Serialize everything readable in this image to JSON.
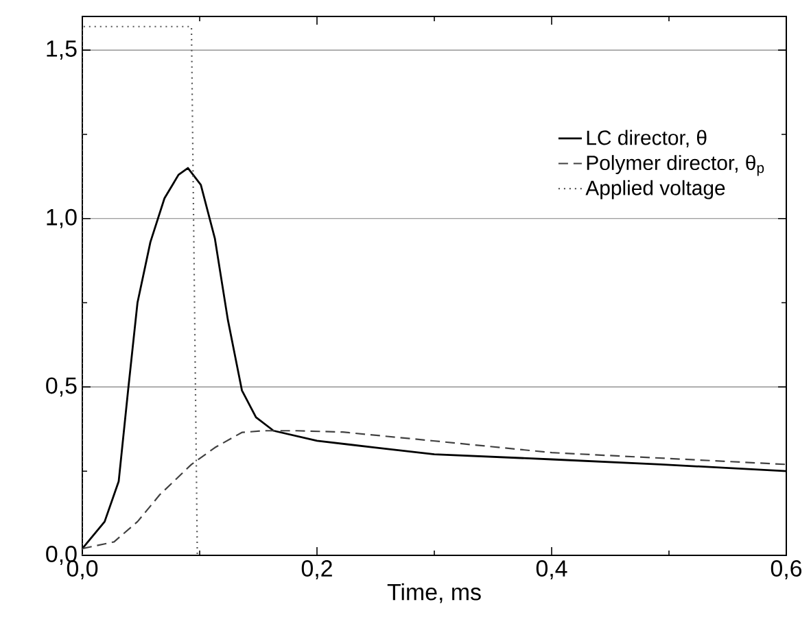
{
  "chart_data": {
    "type": "line",
    "xlabel": "Time, ms",
    "xlim": [
      0,
      0.6
    ],
    "ylim": [
      0,
      1.6
    ],
    "xticks": [
      {
        "value": 0,
        "label": "0,0"
      },
      {
        "value": 0.1,
        "label": null
      },
      {
        "value": 0.2,
        "label": "0,2"
      },
      {
        "value": 0.3,
        "label": null
      },
      {
        "value": 0.4,
        "label": "0,4"
      },
      {
        "value": 0.5,
        "label": null
      },
      {
        "value": 0.6,
        "label": "0,6"
      }
    ],
    "yticks": [
      {
        "value": 0,
        "label": "0,0"
      },
      {
        "value": 0.25,
        "label": null
      },
      {
        "value": 0.5,
        "label": "0,5"
      },
      {
        "value": 0.75,
        "label": null
      },
      {
        "value": 1.0,
        "label": "1,0"
      },
      {
        "value": 1.25,
        "label": null
      },
      {
        "value": 1.5,
        "label": "1,5"
      }
    ],
    "grid": "y",
    "legend": "top right",
    "marker": "none",
    "series": [
      {
        "name": "LC director, θ",
        "color": "#000000",
        "line_style": "solid",
        "x": [
          0,
          0.019,
          0.031,
          0.039,
          0.047,
          0.058,
          0.07,
          0.082,
          0.09,
          0.101,
          0.113,
          0.124,
          0.136,
          0.148,
          0.163,
          0.2,
          0.25,
          0.3,
          0.4,
          0.493,
          0.6
        ],
        "values": [
          0.02,
          0.1,
          0.22,
          0.49,
          0.75,
          0.93,
          1.06,
          1.13,
          1.15,
          1.1,
          0.94,
          0.7,
          0.49,
          0.41,
          0.37,
          0.34,
          0.32,
          0.3,
          0.285,
          0.27,
          0.25
        ]
      },
      {
        "name": "Polymer director, θ$_{p}$",
        "color": "#404040",
        "line_style": "dashed",
        "x": [
          0,
          0.027,
          0.047,
          0.066,
          0.093,
          0.113,
          0.136,
          0.155,
          0.183,
          0.222,
          0.299,
          0.4,
          0.6
        ],
        "values": [
          0.02,
          0.04,
          0.1,
          0.18,
          0.27,
          0.32,
          0.365,
          0.37,
          0.37,
          0.366,
          0.34,
          0.305,
          0.27
        ]
      },
      {
        "name": "Applied voltage",
        "color": "#555555",
        "line_style": "dotted",
        "x": [
          0,
          0,
          0.093,
          0.098
        ],
        "values": [
          0,
          1.57,
          1.57,
          0
        ]
      }
    ]
  }
}
